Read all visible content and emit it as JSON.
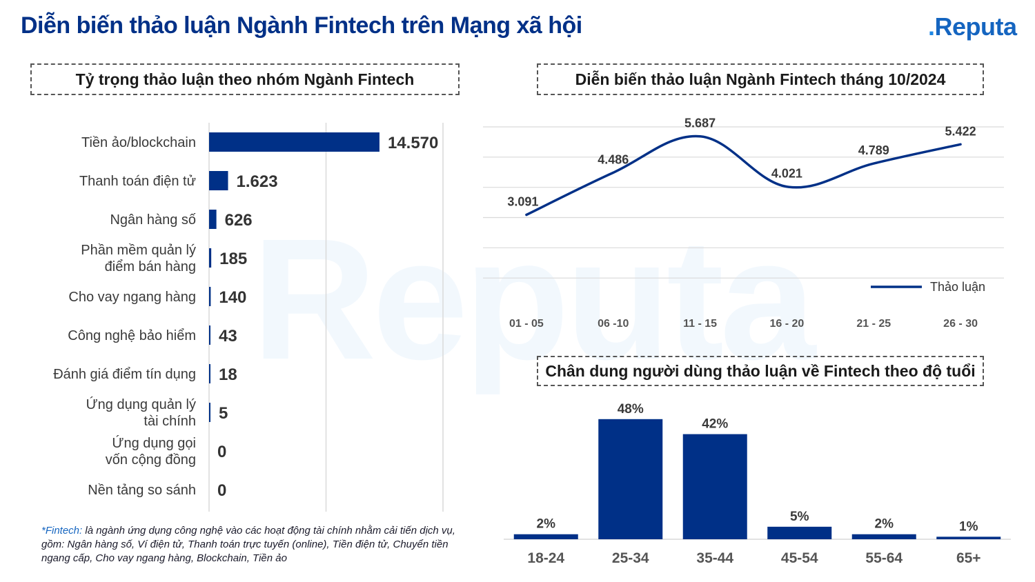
{
  "header": {
    "title": "Diễn biến thảo luận Ngành Fintech trên Mạng xã hội",
    "logo_text": "Reputa",
    "logo_dot": "."
  },
  "watermark": "Reputa",
  "colors": {
    "primary": "#003087",
    "logo": "#1565c0",
    "grid": "#d9d9d9"
  },
  "sections": {
    "left_title": "Tỷ trọng thảo luận theo nhóm Ngành Fintech",
    "line_title": "Diễn biến thảo luận Ngành Fintech tháng 10/2024",
    "age_title": "Chân dung người dùng thảo luận về Fintech theo độ tuổi"
  },
  "footnote": {
    "term": "*Fintech:",
    "text": " là ngành ứng dụng công nghệ vào các hoạt động tài chính nhằm cải tiến dịch vụ, gồm: Ngân hàng số, Ví điện tử, Thanh toán trực tuyến (online), Tiền điện tử, Chuyển tiền ngang cấp, Cho vay ngang hàng, Blockchain, Tiền ảo"
  },
  "chart_data": [
    {
      "type": "bar",
      "orientation": "horizontal",
      "title": "Tỷ trọng thảo luận theo nhóm Ngành Fintech",
      "categories": [
        [
          "Tiền ảo/blockchain"
        ],
        [
          "Thanh toán điện tử"
        ],
        [
          "Ngân hàng số"
        ],
        [
          "Phần mềm quản lý",
          "điểm bán hàng"
        ],
        [
          "Cho vay ngang hàng"
        ],
        [
          "Công nghệ bảo hiểm"
        ],
        [
          "Đánh giá điểm tín dụng"
        ],
        [
          "Ứng dụng quản lý",
          "tài chính"
        ],
        [
          "Ứng dụng gọi",
          "vốn cộng đồng"
        ],
        [
          "Nền tảng so sánh"
        ]
      ],
      "values": [
        14570,
        1623,
        626,
        185,
        140,
        43,
        18,
        5,
        0,
        0
      ],
      "labels": [
        "14.570",
        "1.623",
        "626",
        "185",
        "140",
        "43",
        "18",
        "5",
        "0",
        "0"
      ],
      "xlim": [
        0,
        20000
      ],
      "grid": true
    },
    {
      "type": "line",
      "title": "Diễn biến thảo luận Ngành Fintech tháng 10/2024",
      "categories": [
        "01 - 05",
        "06 -10",
        "11 - 15",
        "16 - 20",
        "21 - 25",
        "26 - 30"
      ],
      "series": [
        {
          "name": "Thảo luận",
          "values": [
            3091,
            4486,
            5687,
            4021,
            4789,
            5422
          ],
          "labels": [
            "3.091",
            "4.486",
            "5.687",
            "4.021",
            "4.789",
            "5.422"
          ]
        }
      ],
      "ylim": [
        0,
        6000
      ],
      "legend": "right",
      "grid": true,
      "smooth": true
    },
    {
      "type": "bar",
      "title": "Chân dung người dùng thảo luận về Fintech theo độ tuổi",
      "categories": [
        "18-24",
        "25-34",
        "35-44",
        "45-54",
        "55-64",
        "65+"
      ],
      "values": [
        2,
        48,
        42,
        5,
        2,
        1
      ],
      "labels": [
        "2%",
        "48%",
        "42%",
        "5%",
        "2%",
        "1%"
      ],
      "ylim": [
        0,
        50
      ]
    }
  ]
}
